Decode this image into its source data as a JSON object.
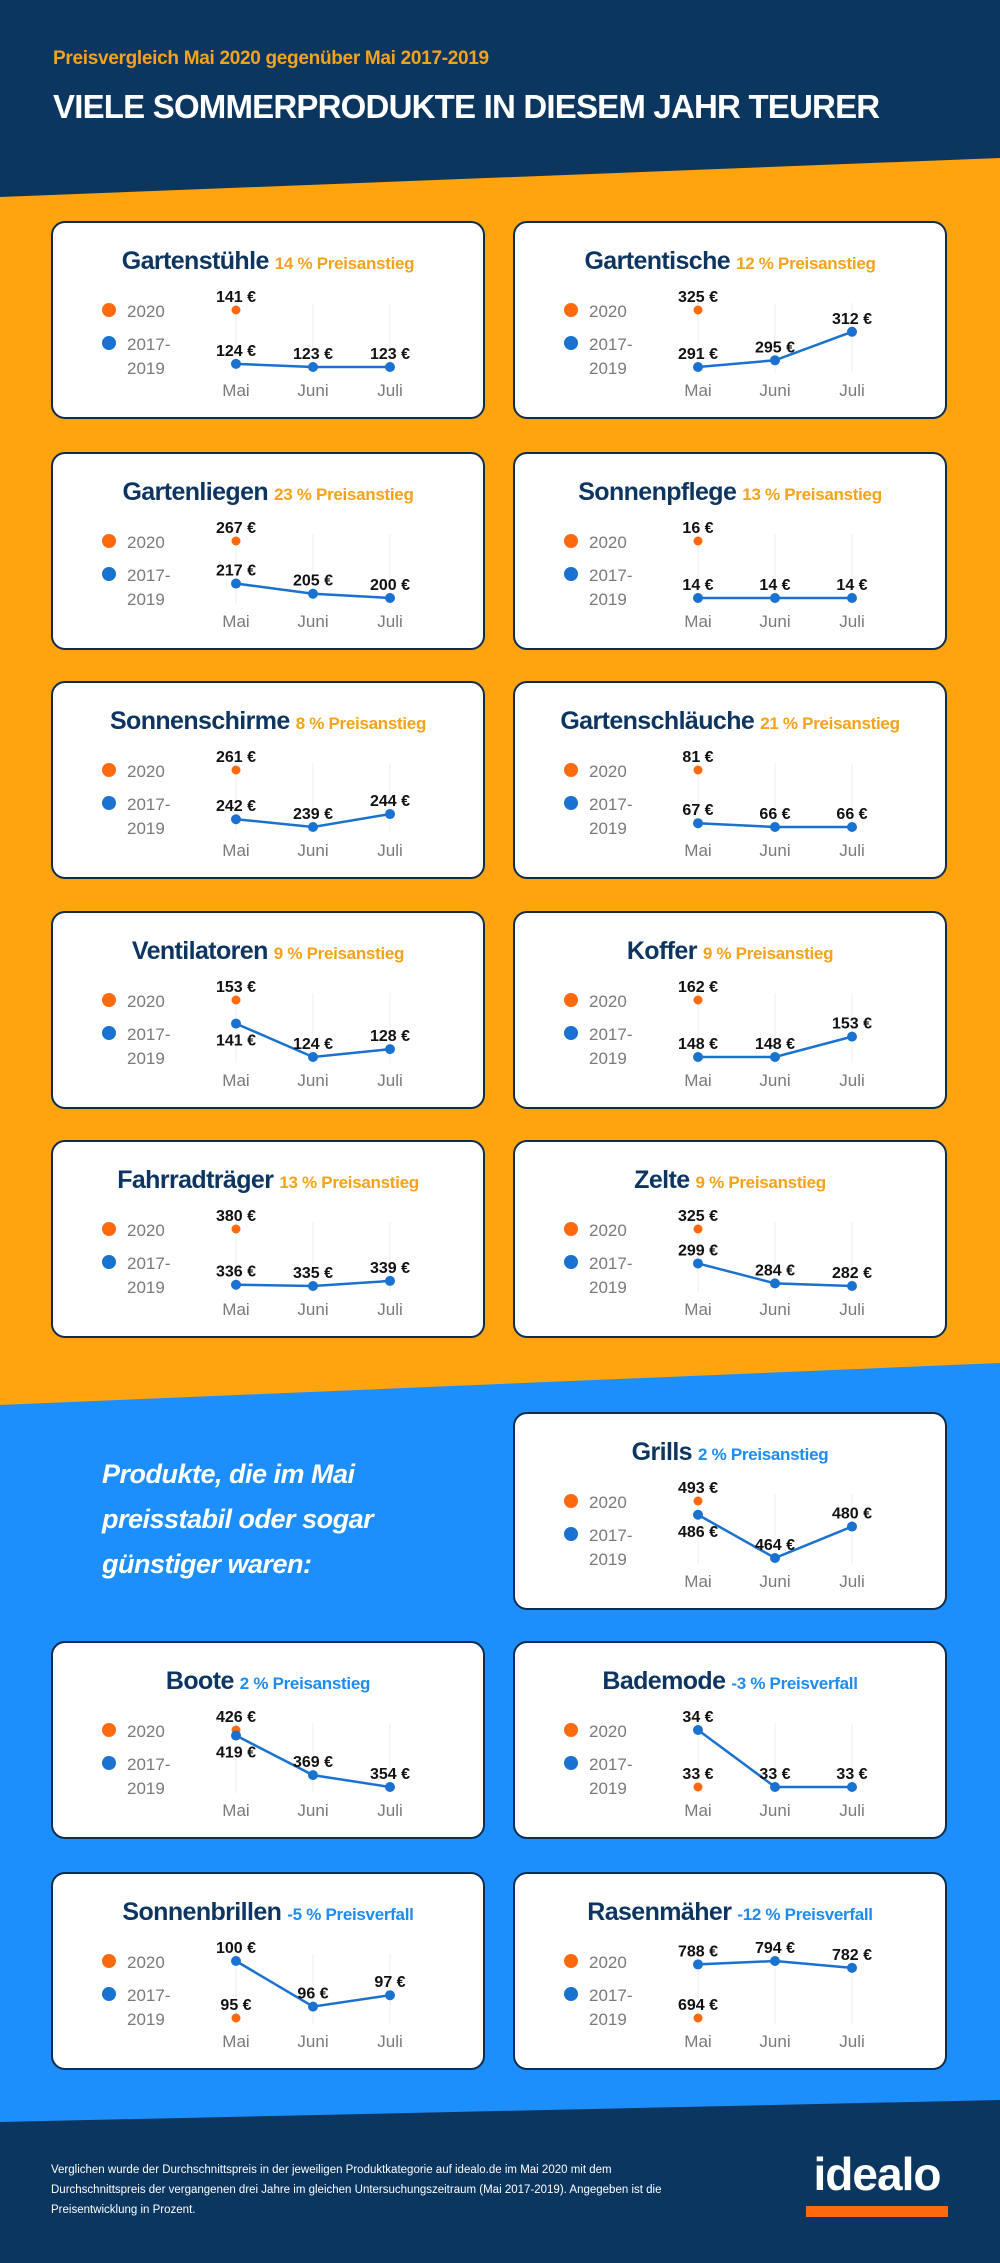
{
  "header": {
    "subtitle": "Preisvergleich Mai 2020 gegenüber Mai 2017-2019",
    "title": "VIELE SOMMERPRODUKTE IN DIESEM JAHR TEURER"
  },
  "colors": {
    "navy": "#0b3660",
    "orange_bg": "#ffa30f",
    "blue_bg": "#1c8ffc",
    "dot_2020": "#ff6a0e",
    "line_2017_2019": "#1a72d0",
    "rise_text": "#f6a21a",
    "fall_text": "#1e8cf0"
  },
  "legend": {
    "a": "2020",
    "b1": "2017-",
    "b2": "2019"
  },
  "months": [
    "Mai",
    "Juni",
    "Juli"
  ],
  "blue_section_text": [
    "Produkte, die im Mai",
    "preisstabil oder sogar",
    "günstiger waren:"
  ],
  "chart_data": [
    {
      "type": "line",
      "title": "Gartenstühle",
      "change": "14 % Preisanstieg",
      "group": "rise",
      "price_2020": 141,
      "avg_2017_2019": [
        124,
        123,
        123
      ]
    },
    {
      "type": "line",
      "title": "Gartentische",
      "change": "12 % Preisanstieg",
      "group": "rise",
      "price_2020": 325,
      "avg_2017_2019": [
        291,
        295,
        312
      ]
    },
    {
      "type": "line",
      "title": "Gartenliegen",
      "change": "23 % Preisanstieg",
      "group": "rise",
      "price_2020": 267,
      "avg_2017_2019": [
        217,
        205,
        200
      ]
    },
    {
      "type": "line",
      "title": "Sonnenpflege",
      "change": "13 % Preisanstieg",
      "group": "rise",
      "price_2020": 16,
      "avg_2017_2019": [
        14,
        14,
        14
      ]
    },
    {
      "type": "line",
      "title": "Sonnenschirme",
      "change": "8 % Preisanstieg",
      "group": "rise",
      "price_2020": 261,
      "avg_2017_2019": [
        242,
        239,
        244
      ]
    },
    {
      "type": "line",
      "title": "Gartenschläuche",
      "change": "21 % Preisanstieg",
      "group": "rise",
      "price_2020": 81,
      "avg_2017_2019": [
        67,
        66,
        66
      ]
    },
    {
      "type": "line",
      "title": "Ventilatoren",
      "change": "9 % Preisanstieg",
      "group": "rise",
      "price_2020": 153,
      "avg_2017_2019": [
        141,
        124,
        128
      ]
    },
    {
      "type": "line",
      "title": "Koffer",
      "change": "9 % Preisanstieg",
      "group": "rise",
      "price_2020": 162,
      "avg_2017_2019": [
        148,
        148,
        153
      ]
    },
    {
      "type": "line",
      "title": "Fahrradträger",
      "change": "13 % Preisanstieg",
      "group": "rise",
      "price_2020": 380,
      "avg_2017_2019": [
        336,
        335,
        339
      ]
    },
    {
      "type": "line",
      "title": "Zelte",
      "change": "9 % Preisanstieg",
      "group": "rise",
      "price_2020": 325,
      "avg_2017_2019": [
        299,
        284,
        282
      ]
    },
    {
      "type": "line",
      "title": "Grills",
      "change": "2 % Preisanstieg",
      "group": "stable",
      "price_2020": 493,
      "avg_2017_2019": [
        486,
        464,
        480
      ]
    },
    {
      "type": "line",
      "title": "Boote",
      "change": "2 % Preisanstieg",
      "group": "stable",
      "price_2020": 426,
      "avg_2017_2019": [
        419,
        369,
        354
      ]
    },
    {
      "type": "line",
      "title": "Bademode",
      "change": "-3 % Preisverfall",
      "group": "stable",
      "price_2020": 33,
      "avg_2017_2019": [
        34,
        33,
        33
      ]
    },
    {
      "type": "line",
      "title": "Sonnenbrillen",
      "change": "-5 % Preisverfall",
      "group": "stable",
      "price_2020": 95,
      "avg_2017_2019": [
        100,
        96,
        97
      ]
    },
    {
      "type": "line",
      "title": "Rasenmäher",
      "change": "-12 % Preisverfall",
      "group": "stable",
      "price_2020": 694,
      "avg_2017_2019": [
        788,
        794,
        782
      ]
    }
  ],
  "currency": "€",
  "footer": {
    "note": "Verglichen wurde der Durchschnittspreis in der jeweiligen Produktkategorie auf idealo.de im Mai 2020 mit dem Durchschnittspreis der vergangenen drei Jahre im gleichen Untersuchungszeitraum (Mai 2017-2019). Angegeben ist die Preisentwicklung in Prozent.",
    "logo": "idealo"
  }
}
